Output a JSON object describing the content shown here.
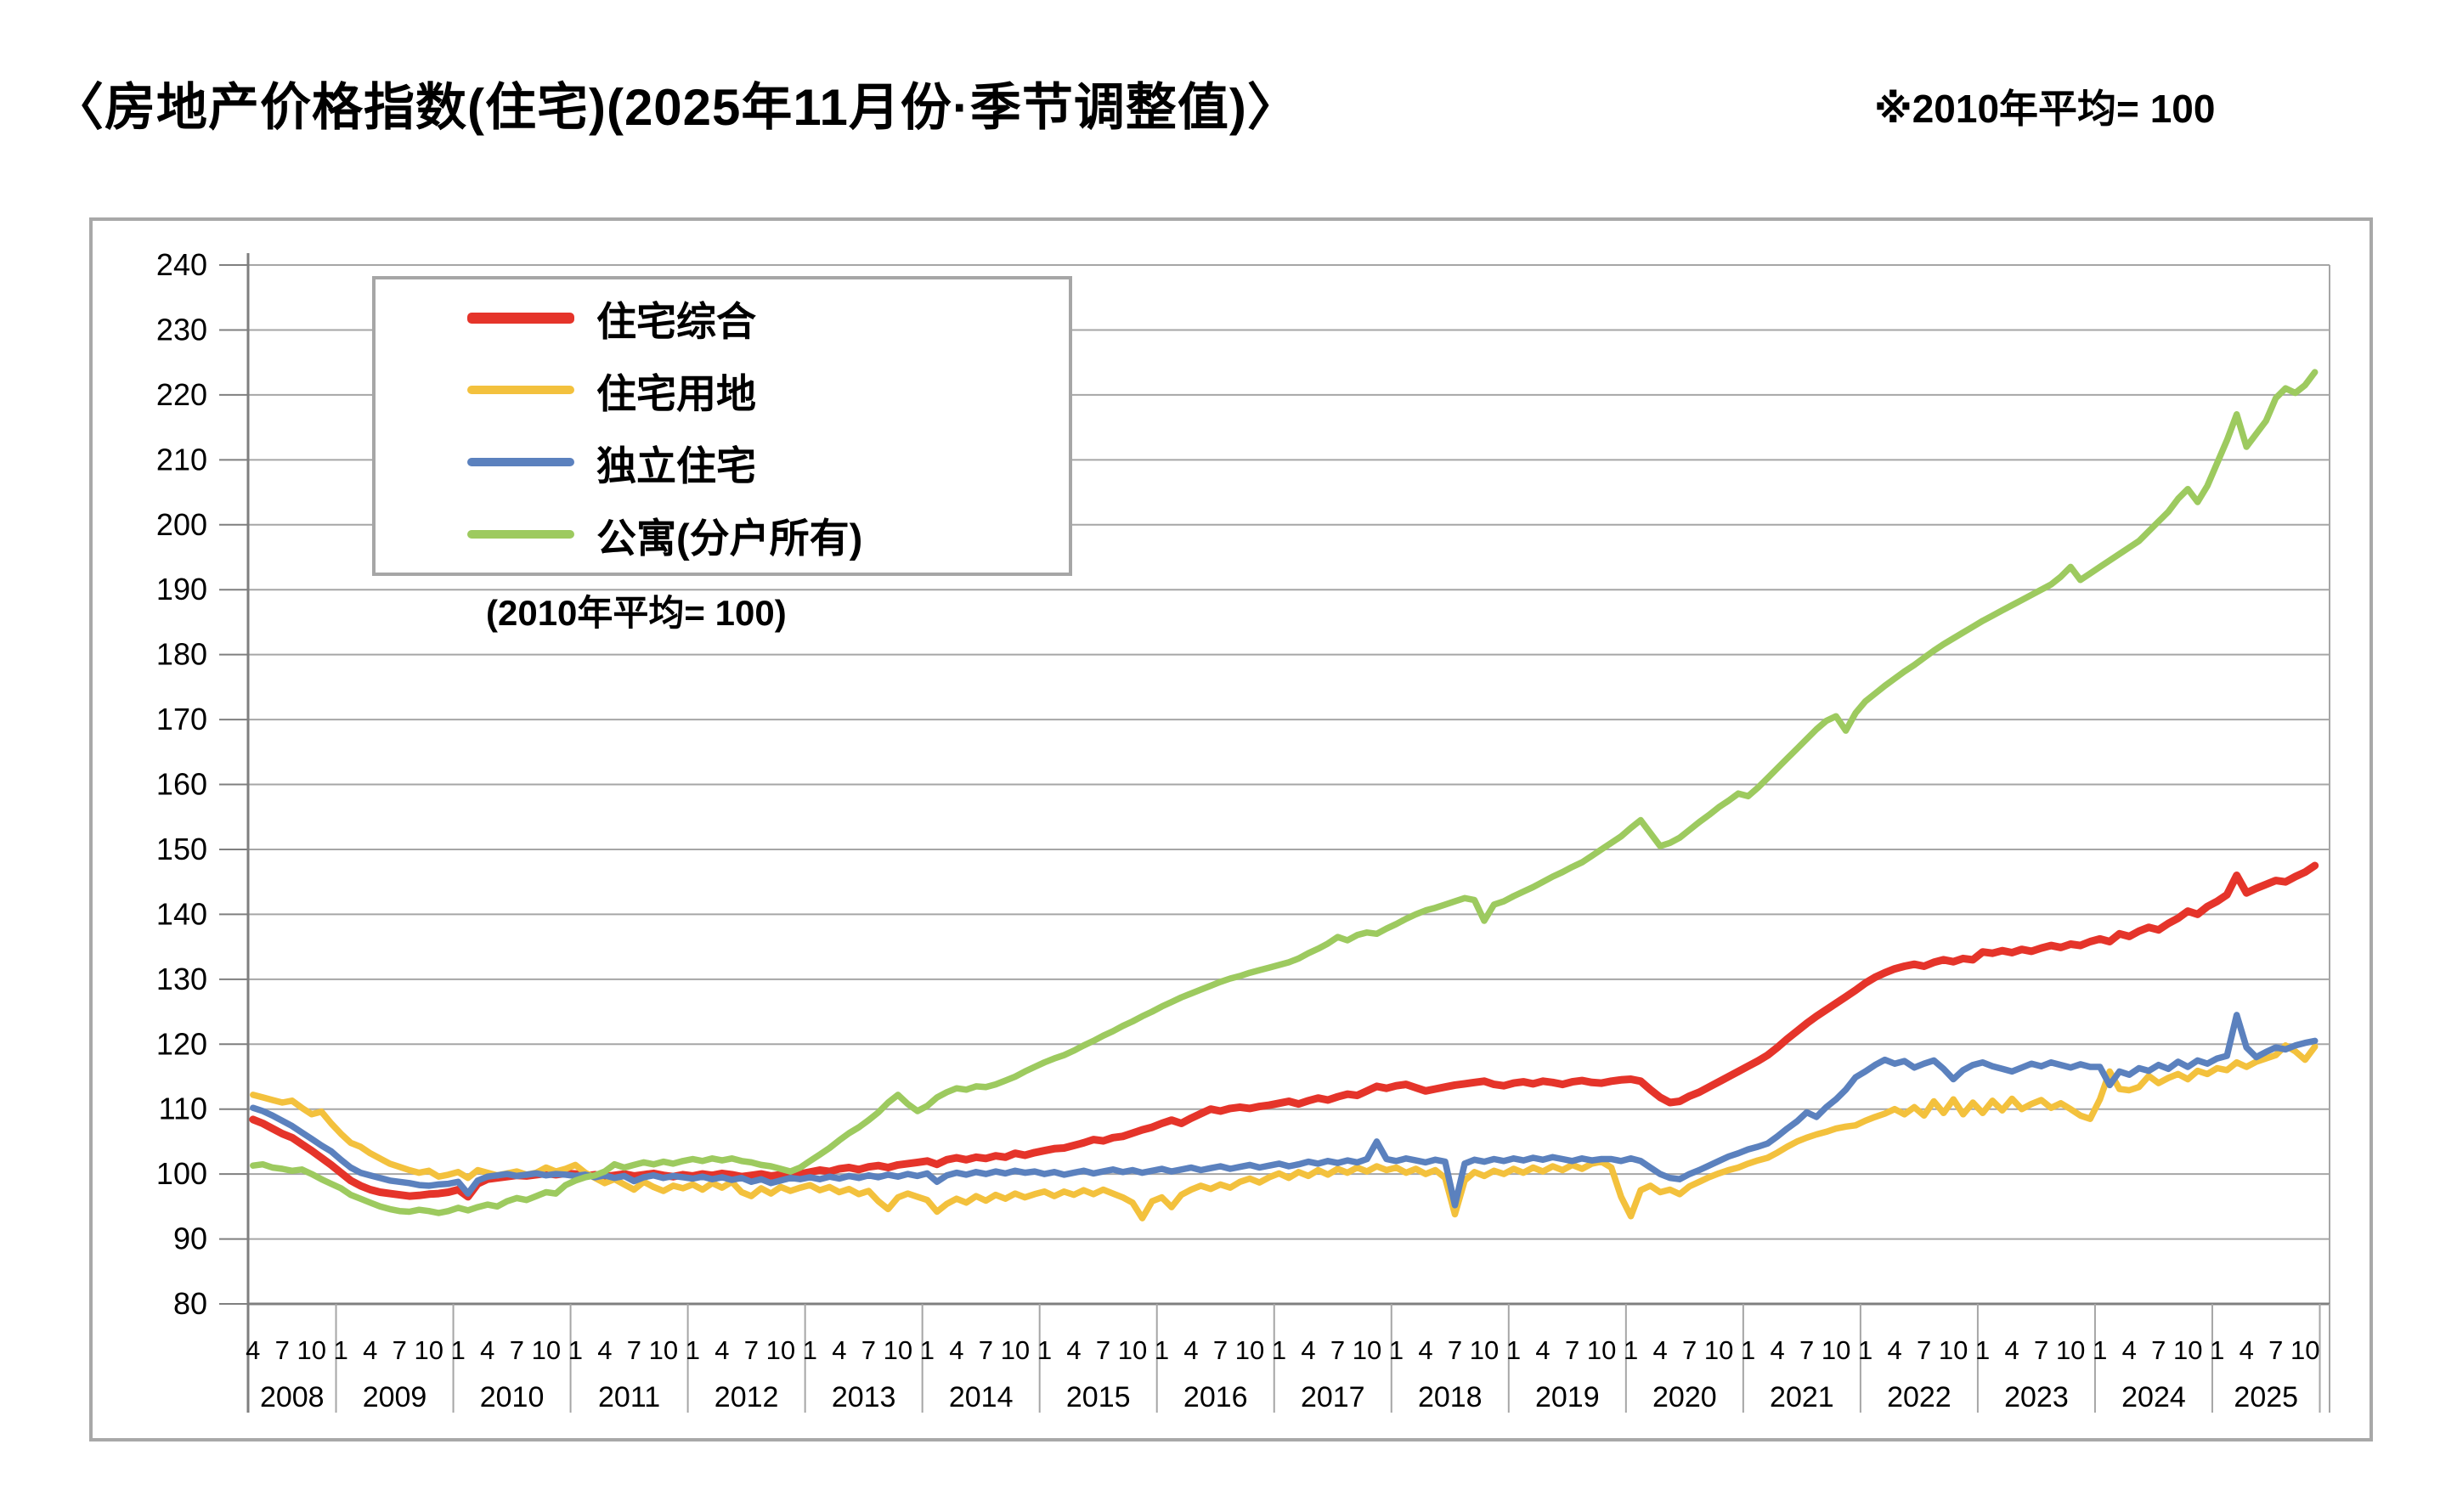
{
  "header": {
    "title": "〈房地产价格指数(住宅)(2025年11月份·季节调整值)〉",
    "note": "※2010年平均= 100"
  },
  "legend": {
    "subnote": "(2010年平均= 100)",
    "items": [
      {
        "label": "住宅综合",
        "color": "#e5342a",
        "thickness": 13
      },
      {
        "label": "住宅用地",
        "color": "#f3c13d",
        "thickness": 10
      },
      {
        "label": "独立住宅",
        "color": "#5b81be",
        "thickness": 10
      },
      {
        "label": "公寓(分户所有)",
        "color": "#9dca5f",
        "thickness": 10
      }
    ]
  },
  "chart_data": {
    "type": "line",
    "title": "房地产价格指数(住宅) 2025年11月份 季节调整值",
    "note": "2010年平均=100",
    "grid": true,
    "legend_position": "top-left",
    "y_axis": {
      "min": 80,
      "max": 240,
      "step": 10
    },
    "x_axis": {
      "start_year": 2008,
      "start_month": 4,
      "end_year": 2025,
      "end_month": 11,
      "month_tick_labels": [
        1,
        4,
        7,
        10
      ],
      "years": [
        2008,
        2009,
        2010,
        2011,
        2012,
        2013,
        2014,
        2015,
        2016,
        2017,
        2018,
        2019,
        2020,
        2021,
        2022,
        2023,
        2024,
        2025
      ]
    },
    "series": [
      {
        "name": "住宅综合",
        "color": "#e5342a",
        "width": 9,
        "values": [
          108.4,
          107.8,
          107.0,
          106.2,
          105.6,
          104.6,
          103.6,
          102.5,
          101.4,
          100.2,
          99.0,
          98.2,
          97.6,
          97.2,
          97.0,
          96.8,
          96.6,
          96.7,
          96.9,
          97.0,
          97.2,
          97.6,
          96.5,
          98.5,
          99.2,
          99.4,
          99.6,
          99.8,
          99.7,
          99.9,
          100.1,
          99.9,
          100.1,
          100.0,
          99.7,
          99.9,
          99.6,
          99.8,
          100.0,
          99.7,
          99.9,
          100.1,
          99.8,
          99.6,
          99.9,
          99.7,
          100.0,
          99.8,
          100.1,
          99.9,
          99.6,
          99.8,
          100.0,
          99.7,
          99.9,
          100.1,
          100.0,
          100.3,
          100.6,
          100.4,
          100.8,
          101.0,
          100.7,
          101.1,
          101.3,
          101.0,
          101.4,
          101.6,
          101.8,
          102.0,
          101.5,
          102.2,
          102.5,
          102.2,
          102.6,
          102.4,
          102.8,
          102.6,
          103.2,
          102.9,
          103.3,
          103.6,
          103.9,
          104.0,
          104.4,
          104.8,
          105.3,
          105.1,
          105.6,
          105.8,
          106.3,
          106.8,
          107.2,
          107.8,
          108.3,
          107.8,
          108.6,
          109.3,
          110.0,
          109.7,
          110.1,
          110.3,
          110.1,
          110.4,
          110.6,
          110.9,
          111.2,
          110.8,
          111.3,
          111.7,
          111.4,
          111.9,
          112.3,
          112.1,
          112.8,
          113.5,
          113.2,
          113.6,
          113.8,
          113.3,
          112.8,
          113.1,
          113.4,
          113.7,
          113.9,
          114.1,
          114.3,
          113.8,
          113.6,
          114.0,
          114.2,
          113.9,
          114.3,
          114.1,
          113.8,
          114.2,
          114.4,
          114.1,
          114.0,
          114.3,
          114.5,
          114.6,
          114.3,
          113.0,
          111.8,
          111.0,
          111.2,
          112.0,
          112.6,
          113.4,
          114.2,
          115.0,
          115.8,
          116.6,
          117.4,
          118.3,
          119.5,
          120.8,
          122.0,
          123.2,
          124.3,
          125.3,
          126.3,
          127.3,
          128.3,
          129.4,
          130.3,
          131.0,
          131.6,
          132.0,
          132.3,
          132.0,
          132.6,
          133.0,
          132.7,
          133.2,
          133.0,
          134.2,
          134.0,
          134.4,
          134.1,
          134.6,
          134.3,
          134.8,
          135.2,
          134.9,
          135.4,
          135.2,
          135.8,
          136.2,
          135.8,
          137.0,
          136.6,
          137.4,
          138.0,
          137.6,
          138.6,
          139.4,
          140.5,
          140.0,
          141.2,
          142.0,
          143.0,
          146.0,
          143.3,
          144.0,
          144.6,
          145.2,
          145.0,
          145.8,
          146.5,
          147.5
        ]
      },
      {
        "name": "住宅用地",
        "color": "#f3c13d",
        "width": 7.5,
        "values": [
          112.2,
          111.8,
          111.4,
          111.0,
          111.3,
          110.2,
          109.2,
          109.6,
          107.8,
          106.2,
          104.8,
          104.2,
          103.2,
          102.4,
          101.6,
          101.1,
          100.6,
          100.2,
          100.5,
          99.6,
          99.9,
          100.3,
          99.4,
          100.6,
          100.2,
          99.8,
          100.1,
          100.4,
          99.9,
          100.2,
          101.0,
          100.4,
          100.8,
          101.4,
          100.2,
          99.4,
          98.6,
          99.2,
          98.4,
          97.6,
          98.8,
          98.0,
          97.4,
          98.2,
          97.8,
          98.4,
          97.6,
          98.6,
          97.9,
          98.8,
          97.2,
          96.6,
          97.8,
          97.0,
          98.0,
          97.4,
          97.9,
          98.3,
          97.5,
          98.0,
          97.2,
          97.7,
          96.9,
          97.4,
          95.8,
          94.6,
          96.4,
          97.0,
          96.5,
          96.0,
          94.2,
          95.4,
          96.2,
          95.6,
          96.6,
          95.9,
          96.8,
          96.2,
          97.0,
          96.4,
          96.9,
          97.3,
          96.6,
          97.3,
          96.8,
          97.5,
          96.9,
          97.6,
          97.0,
          96.4,
          95.6,
          93.2,
          95.8,
          96.4,
          94.9,
          96.8,
          97.6,
          98.2,
          97.7,
          98.4,
          97.9,
          98.8,
          99.3,
          98.7,
          99.5,
          100.1,
          99.4,
          100.3,
          99.7,
          100.6,
          99.9,
          100.8,
          100.2,
          101.0,
          100.4,
          101.2,
          100.6,
          101.0,
          100.2,
          100.8,
          100.0,
          100.6,
          99.4,
          93.8,
          99.0,
          100.3,
          99.7,
          100.5,
          100.0,
          100.8,
          100.2,
          101.0,
          100.4,
          101.2,
          100.6,
          101.4,
          100.8,
          101.6,
          101.9,
          101.0,
          96.5,
          93.5,
          97.5,
          98.2,
          97.2,
          97.6,
          96.9,
          98.1,
          98.8,
          99.5,
          100.1,
          100.6,
          101.0,
          101.6,
          102.1,
          102.5,
          103.3,
          104.2,
          105.0,
          105.6,
          106.1,
          106.5,
          107.0,
          107.3,
          107.5,
          108.2,
          108.8,
          109.3,
          110.0,
          109.2,
          110.3,
          109.0,
          111.2,
          109.4,
          111.5,
          109.2,
          111.0,
          109.4,
          111.3,
          109.8,
          111.6,
          110.0,
          110.8,
          111.4,
          110.2,
          110.9,
          110.0,
          109.0,
          108.5,
          111.5,
          115.8,
          113.1,
          112.9,
          113.4,
          115.1,
          114.0,
          114.8,
          115.4,
          114.6,
          115.9,
          115.4,
          116.3,
          116.0,
          117.2,
          116.5,
          117.3,
          117.8,
          118.3,
          119.8,
          118.9,
          117.6,
          119.6
        ]
      },
      {
        "name": "独立住宅",
        "color": "#5b81be",
        "width": 7.5,
        "values": [
          110.2,
          109.7,
          109.0,
          108.2,
          107.4,
          106.4,
          105.4,
          104.4,
          103.5,
          102.2,
          101.0,
          100.2,
          99.8,
          99.4,
          99.0,
          98.8,
          98.6,
          98.3,
          98.2,
          98.4,
          98.5,
          98.8,
          97.0,
          99.0,
          99.6,
          99.8,
          100.0,
          99.7,
          99.9,
          100.1,
          99.8,
          100.0,
          99.9,
          99.7,
          99.9,
          99.5,
          99.8,
          99.4,
          99.7,
          98.9,
          99.5,
          99.8,
          99.4,
          99.7,
          99.5,
          99.3,
          99.6,
          99.2,
          99.5,
          99.1,
          99.4,
          98.8,
          99.2,
          98.6,
          99.0,
          99.4,
          99.2,
          99.5,
          99.2,
          99.6,
          99.3,
          99.7,
          99.4,
          99.8,
          99.5,
          99.9,
          99.6,
          100.0,
          99.7,
          100.1,
          98.8,
          99.8,
          100.2,
          99.9,
          100.3,
          100.0,
          100.4,
          100.1,
          100.5,
          100.2,
          100.4,
          100.0,
          100.3,
          99.9,
          100.2,
          100.5,
          100.1,
          100.4,
          100.7,
          100.3,
          100.6,
          100.2,
          100.5,
          100.8,
          100.4,
          100.7,
          101.0,
          100.6,
          100.9,
          101.2,
          100.8,
          101.1,
          101.4,
          101.0,
          101.3,
          101.6,
          101.2,
          101.5,
          101.9,
          101.6,
          102.0,
          101.7,
          102.1,
          101.8,
          102.3,
          105.0,
          102.3,
          102.0,
          102.4,
          102.1,
          101.8,
          102.2,
          101.9,
          95.2,
          101.6,
          102.2,
          101.9,
          102.3,
          102.0,
          102.4,
          102.1,
          102.5,
          102.2,
          102.6,
          102.3,
          102.0,
          102.4,
          102.1,
          102.3,
          102.3,
          102.0,
          102.4,
          102.0,
          101.0,
          100.0,
          99.4,
          99.2,
          100.0,
          100.6,
          101.3,
          102.0,
          102.7,
          103.2,
          103.8,
          104.2,
          104.7,
          105.8,
          107.0,
          108.1,
          109.5,
          108.8,
          110.3,
          111.5,
          113.0,
          114.9,
          115.8,
          116.8,
          117.6,
          117.0,
          117.4,
          116.4,
          117.0,
          117.5,
          116.2,
          114.6,
          116.0,
          116.8,
          117.2,
          116.6,
          116.2,
          115.8,
          116.4,
          117.0,
          116.6,
          117.2,
          116.8,
          116.4,
          116.9,
          116.5,
          116.5,
          113.7,
          115.8,
          115.3,
          116.3,
          115.9,
          116.8,
          116.2,
          117.3,
          116.5,
          117.5,
          117.0,
          117.8,
          118.2,
          124.5,
          119.5,
          118.0,
          118.8,
          119.5,
          119.2,
          119.8,
          120.2,
          120.5
        ]
      },
      {
        "name": "公寓(分户所有)",
        "color": "#9dca5f",
        "width": 7.5,
        "values": [
          101.3,
          101.5,
          101.0,
          100.8,
          100.5,
          100.7,
          100.0,
          99.2,
          98.5,
          97.8,
          96.8,
          96.2,
          95.6,
          95.0,
          94.6,
          94.3,
          94.2,
          94.5,
          94.3,
          94.0,
          94.3,
          94.8,
          94.4,
          94.9,
          95.3,
          95.0,
          95.8,
          96.3,
          96.0,
          96.6,
          97.2,
          97.0,
          98.3,
          99.0,
          99.5,
          99.8,
          100.4,
          101.5,
          101.0,
          101.4,
          101.8,
          101.5,
          101.9,
          101.6,
          102.0,
          102.3,
          102.0,
          102.4,
          102.1,
          102.4,
          102.0,
          101.8,
          101.4,
          101.2,
          100.8,
          100.4,
          101.0,
          102.0,
          103.0,
          104.0,
          105.2,
          106.3,
          107.2,
          108.3,
          109.5,
          111.0,
          112.2,
          110.8,
          109.7,
          110.5,
          111.8,
          112.6,
          113.2,
          113.0,
          113.5,
          113.4,
          113.8,
          114.4,
          115.0,
          115.8,
          116.5,
          117.2,
          117.8,
          118.3,
          119.0,
          119.8,
          120.5,
          121.3,
          122.0,
          122.8,
          123.5,
          124.3,
          125.0,
          125.8,
          126.5,
          127.2,
          127.8,
          128.4,
          129.0,
          129.6,
          130.1,
          130.5,
          131.0,
          131.4,
          131.8,
          132.2,
          132.6,
          133.2,
          134.0,
          134.7,
          135.5,
          136.5,
          136.0,
          136.8,
          137.2,
          137.0,
          137.8,
          138.5,
          139.3,
          140.0,
          140.6,
          141.0,
          141.5,
          142.0,
          142.5,
          142.2,
          139.0,
          141.5,
          142.0,
          142.8,
          143.5,
          144.2,
          145.0,
          145.8,
          146.5,
          147.3,
          148.0,
          149.0,
          150.0,
          151.0,
          152.0,
          153.3,
          154.5,
          152.5,
          150.5,
          151.0,
          151.8,
          153.0,
          154.2,
          155.3,
          156.5,
          157.5,
          158.6,
          158.2,
          159.5,
          161.0,
          162.5,
          164.0,
          165.5,
          167.0,
          168.5,
          169.8,
          170.5,
          168.3,
          171.0,
          172.8,
          174.0,
          175.2,
          176.3,
          177.4,
          178.4,
          179.5,
          180.6,
          181.6,
          182.5,
          183.4,
          184.3,
          185.2,
          186.0,
          186.8,
          187.6,
          188.4,
          189.2,
          190.0,
          190.8,
          192.0,
          193.5,
          191.5,
          192.5,
          193.5,
          194.5,
          195.5,
          196.5,
          197.5,
          199.0,
          200.5,
          202.0,
          204.0,
          205.5,
          203.5,
          206.0,
          209.5,
          213.0,
          217.0,
          212.0,
          214.0,
          216.0,
          219.5,
          221.0,
          220.3,
          221.5,
          223.5
        ]
      }
    ]
  }
}
